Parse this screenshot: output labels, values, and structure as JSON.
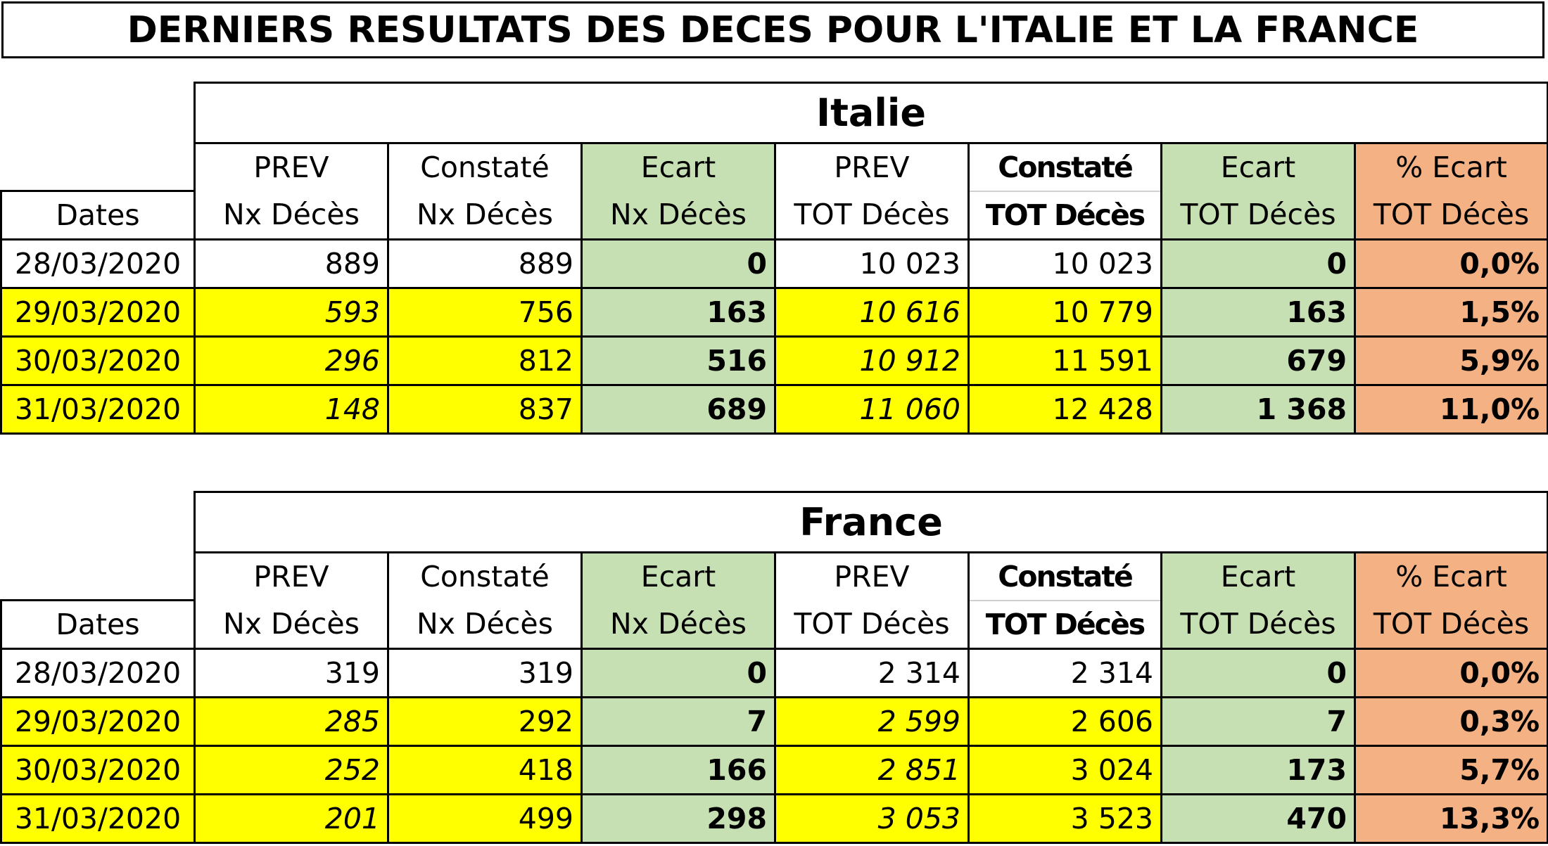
{
  "title": "DERNIERS RESULTATS DES DECES POUR L'ITALIE ET LA FRANCE",
  "headers": {
    "dates": "Dates",
    "prev_top": "PREV",
    "constate_top": "Constaté",
    "ecart_top": "Ecart",
    "pct_ecart_top": "% Ecart",
    "nx_deces": "Nx Décès",
    "tot_deces": "TOT Décès"
  },
  "colors": {
    "yellow": "#ffff00",
    "green": "#c6e0b4",
    "orange": "#f4b183"
  },
  "tables": [
    {
      "country": "Italie",
      "rows": [
        {
          "date": "28/03/2020",
          "prev_nx": "889",
          "constate_nx": "889",
          "ecart_nx": "0",
          "prev_tot": "10 023",
          "constate_tot": "10 023",
          "ecart_tot": "0",
          "pct_ecart": "0,0%"
        },
        {
          "date": "29/03/2020",
          "prev_nx": "593",
          "constate_nx": "756",
          "ecart_nx": "163",
          "prev_tot": "10 616",
          "constate_tot": "10 779",
          "ecart_tot": "163",
          "pct_ecart": "1,5%"
        },
        {
          "date": "30/03/2020",
          "prev_nx": "296",
          "constate_nx": "812",
          "ecart_nx": "516",
          "prev_tot": "10 912",
          "constate_tot": "11 591",
          "ecart_tot": "679",
          "pct_ecart": "5,9%"
        },
        {
          "date": "31/03/2020",
          "prev_nx": "148",
          "constate_nx": "837",
          "ecart_nx": "689",
          "prev_tot": "11 060",
          "constate_tot": "12 428",
          "ecart_tot": "1 368",
          "pct_ecart": "11,0%"
        }
      ]
    },
    {
      "country": "France",
      "rows": [
        {
          "date": "28/03/2020",
          "prev_nx": "319",
          "constate_nx": "319",
          "ecart_nx": "0",
          "prev_tot": "2 314",
          "constate_tot": "2 314",
          "ecart_tot": "0",
          "pct_ecart": "0,0%"
        },
        {
          "date": "29/03/2020",
          "prev_nx": "285",
          "constate_nx": "292",
          "ecart_nx": "7",
          "prev_tot": "2 599",
          "constate_tot": "2 606",
          "ecart_tot": "7",
          "pct_ecart": "0,3%"
        },
        {
          "date": "30/03/2020",
          "prev_nx": "252",
          "constate_nx": "418",
          "ecart_nx": "166",
          "prev_tot": "2 851",
          "constate_tot": "3 024",
          "ecart_tot": "173",
          "pct_ecart": "5,7%"
        },
        {
          "date": "31/03/2020",
          "prev_nx": "201",
          "constate_nx": "499",
          "ecart_nx": "298",
          "prev_tot": "3 053",
          "constate_tot": "3 523",
          "ecart_tot": "470",
          "pct_ecart": "13,3%"
        }
      ]
    }
  ]
}
